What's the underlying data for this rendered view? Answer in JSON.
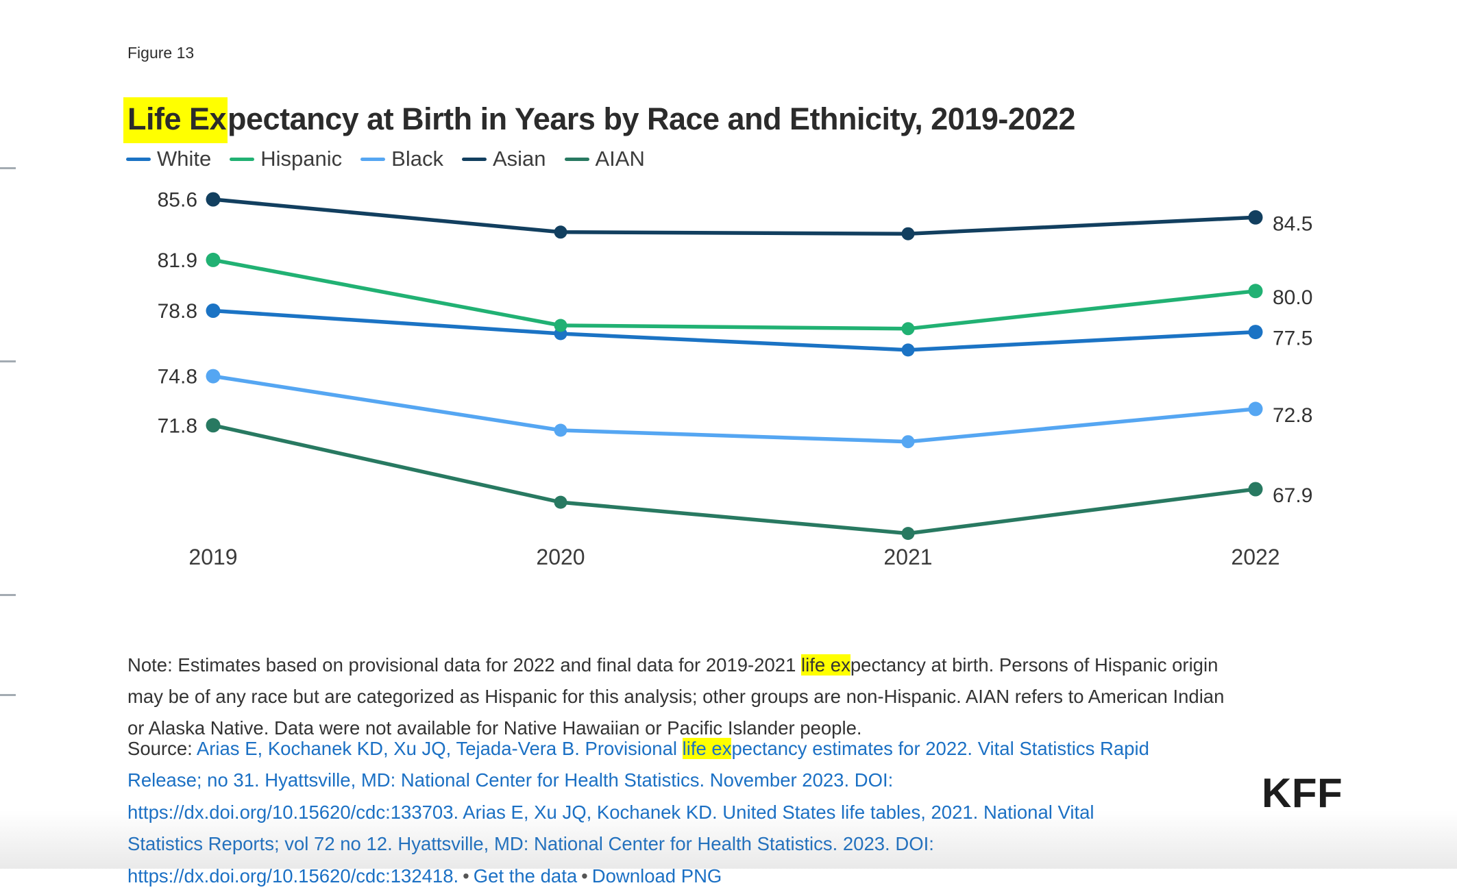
{
  "figure_label": "Figure 13",
  "title": {
    "highlight": "Life Ex",
    "rest": "pectancy at Birth in Years by Race and Ethnicity, 2019-2022"
  },
  "legend": [
    {
      "label": "White",
      "color": "#1B73C4"
    },
    {
      "label": "Hispanic",
      "color": "#21B173"
    },
    {
      "label": "Black",
      "color": "#55A6F2"
    },
    {
      "label": "Asian",
      "color": "#123F5F"
    },
    {
      "label": "AIAN",
      "color": "#287961"
    }
  ],
  "chart_data": {
    "type": "line",
    "title": "Life Expectancy at Birth in Years by Race and Ethnicity, 2019-2022",
    "x": [
      2019,
      2020,
      2021,
      2022
    ],
    "series": [
      {
        "name": "White",
        "color": "#1B73C4",
        "values": [
          78.8,
          77.4,
          76.4,
          77.5
        ]
      },
      {
        "name": "Hispanic",
        "color": "#21B173",
        "values": [
          81.9,
          77.9,
          77.7,
          80.0
        ]
      },
      {
        "name": "Black",
        "color": "#55A6F2",
        "values": [
          74.8,
          71.5,
          70.8,
          72.8
        ]
      },
      {
        "name": "Asian",
        "color": "#123F5F",
        "values": [
          85.6,
          83.6,
          83.5,
          84.5
        ]
      },
      {
        "name": "AIAN",
        "color": "#287961",
        "values": [
          71.8,
          67.1,
          65.2,
          67.9
        ]
      }
    ],
    "xlabel": "",
    "ylabel": "",
    "ylim": [
      64,
      87
    ],
    "grid": false,
    "legend_position": "top-left",
    "point_labels": {
      "first_year": true,
      "last_year": true
    },
    "value_label_format": "one-decimal"
  },
  "note": {
    "prefix": "Note: Estimates based on provisional data for 2022 and final data for 2019-2021 ",
    "highlight": "life ex",
    "suffix": "pectancy at birth. Persons of Hispanic origin may be of any race but are categorized as Hispanic for this analysis; other groups are non-Hispanic. AIAN refers to American Indian or Alaska Native. Data were not available for Native Hawaiian or Pacific Islander people."
  },
  "source": {
    "label": "Source: ",
    "citation_before": "Arias E, Kochanek KD, Xu JQ, Tejada-Vera B. Provisional ",
    "highlight": "life ex",
    "citation_after": "pectancy estimates for 2022. Vital Statistics Rapid Release; no 31. Hyattsville, MD: National Center for Health Statistics. November 2023. DOI: https://dx.doi.org/10.15620/cdc:133703. Arias E, Xu JQ, Kochanek KD. United States life tables, 2021. National Vital Statistics Reports; vol 72 no 12. Hyattsville, MD: National Center for Health Statistics. 2023. DOI: https://dx.doi.org/10.15620/cdc:132418.",
    "separator": "•",
    "links": {
      "get_data": "Get the data",
      "download_png": "Download PNG"
    }
  },
  "logo": "KFF",
  "colors": {
    "highlight_yellow": "#FFFF00",
    "link_blue": "#1B70C4",
    "text_dark": "#333333",
    "edge_tick_gray": "#a3abb2"
  }
}
